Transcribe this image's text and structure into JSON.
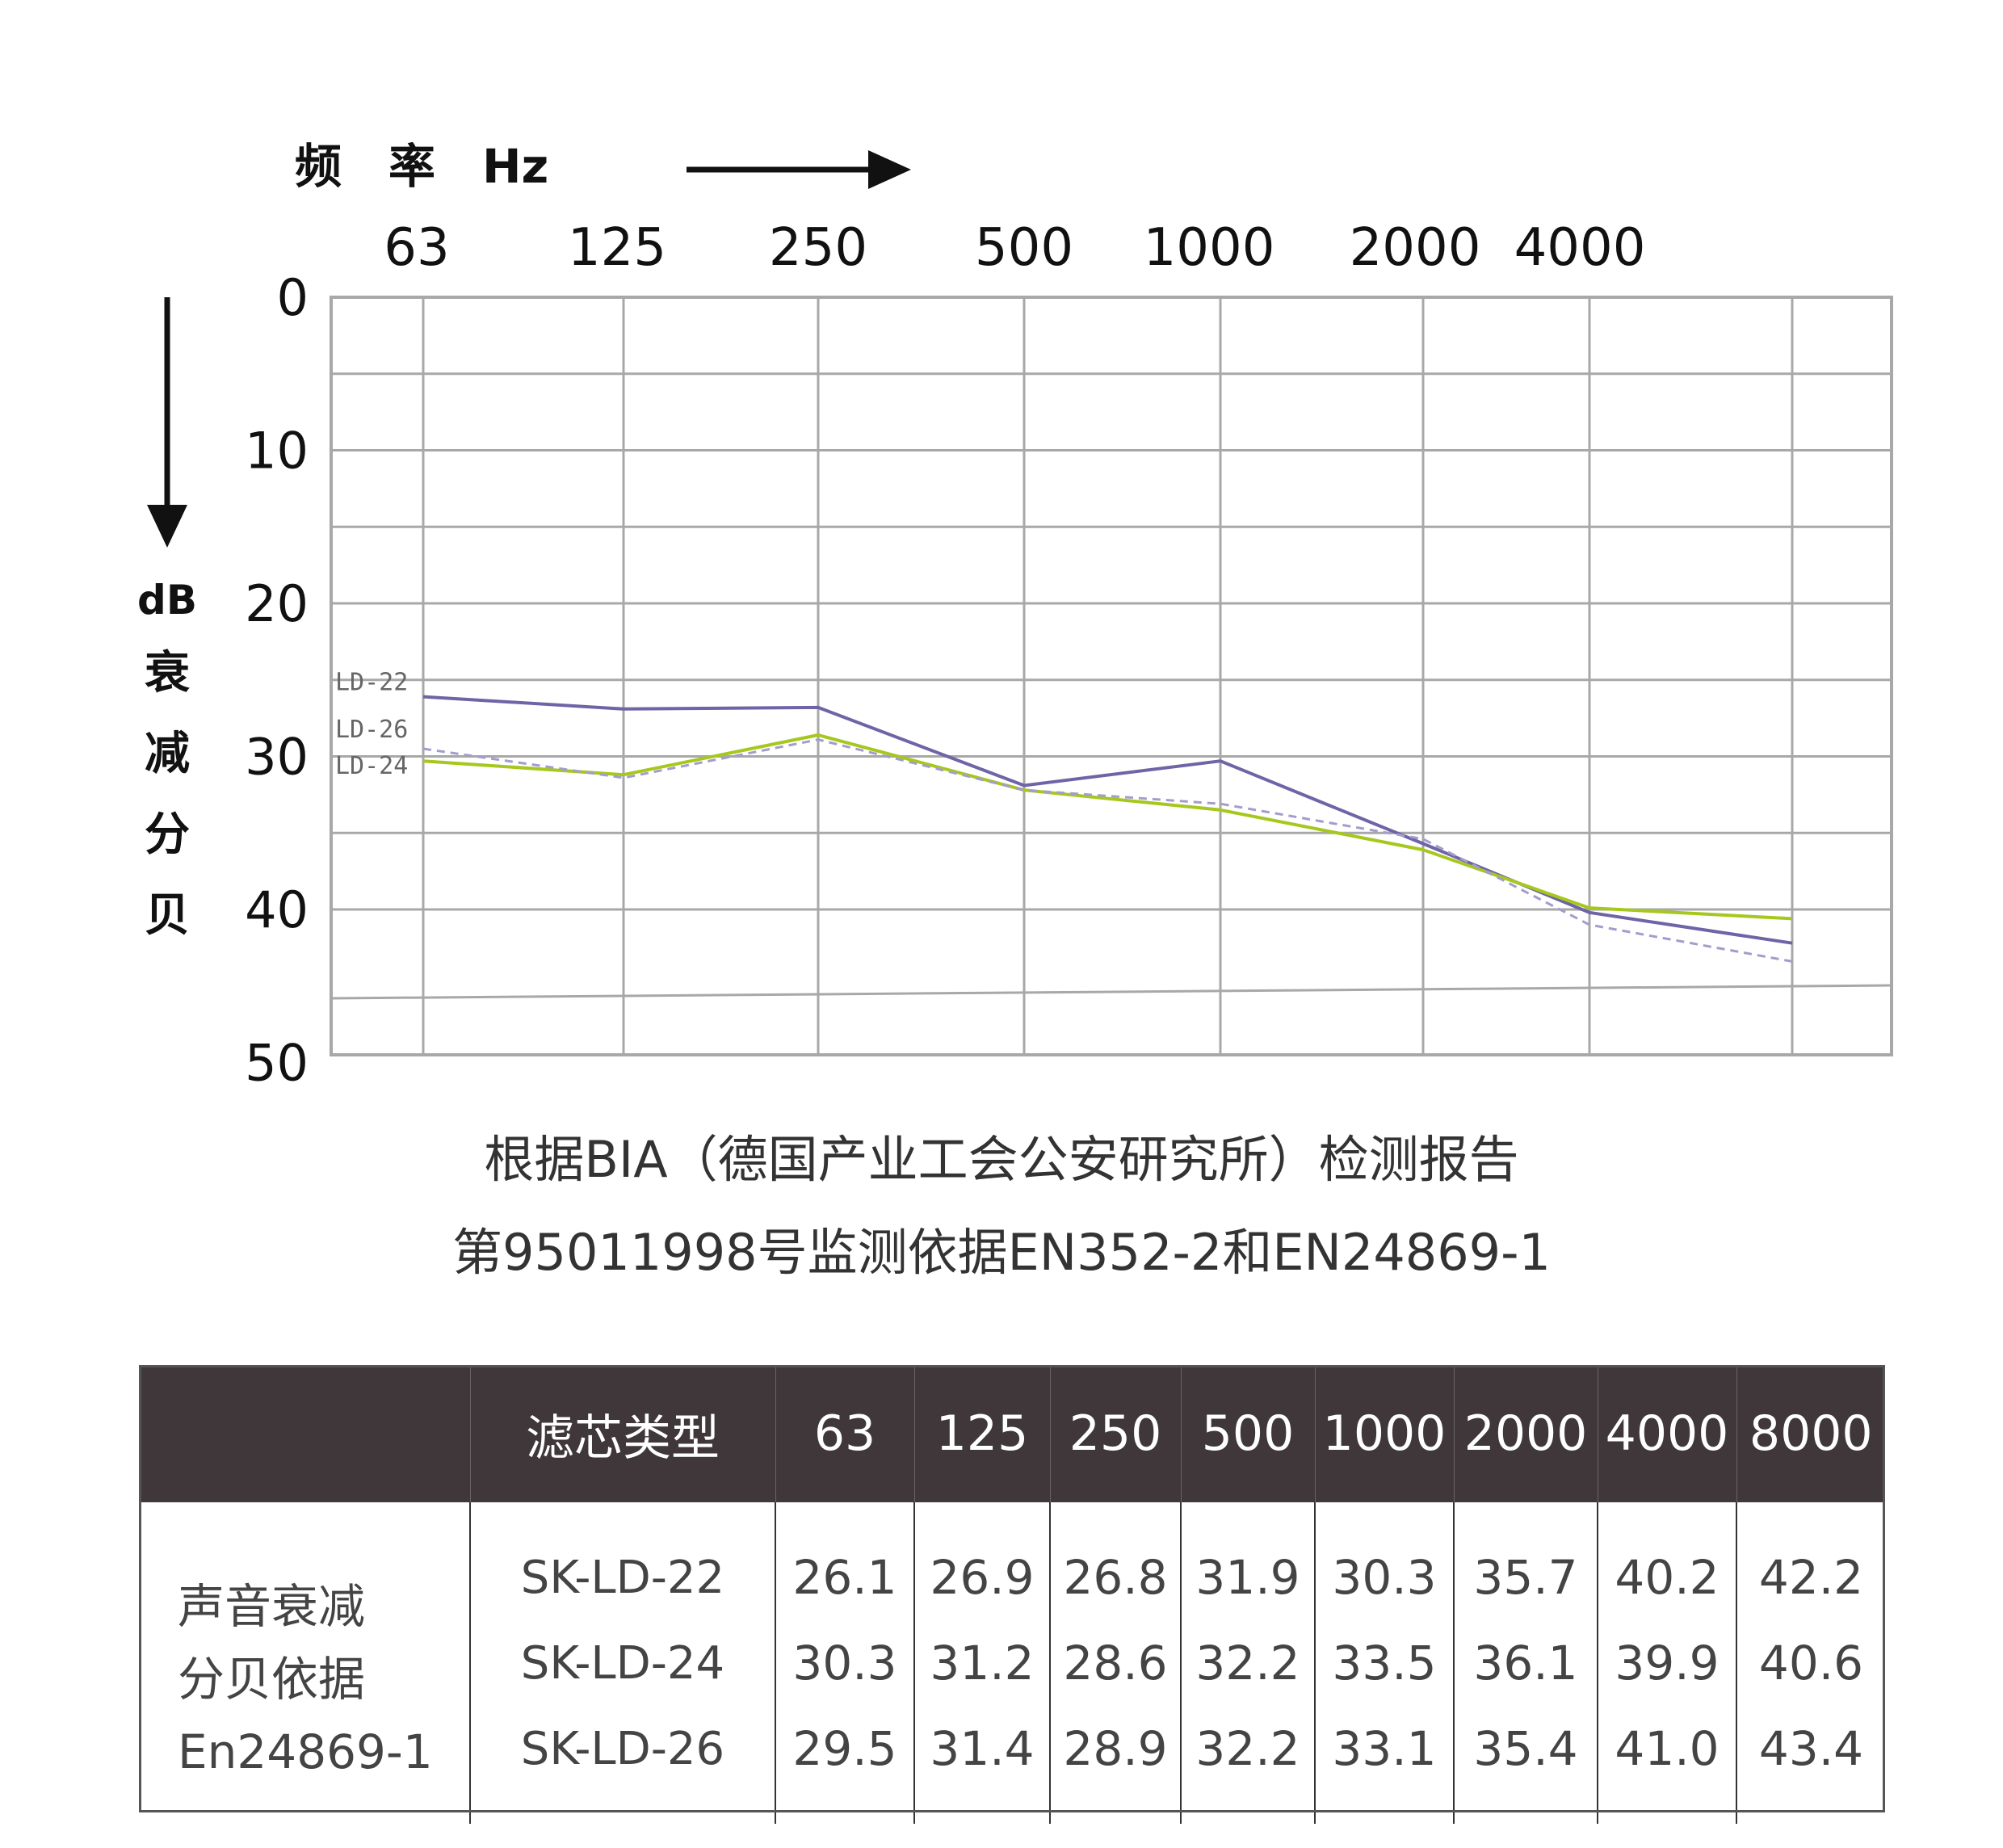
{
  "chart_data": {
    "type": "line",
    "x_axis_title": "频　率　Hz",
    "y_axis_title": [
      "dB",
      "衰",
      "减",
      "分",
      "贝"
    ],
    "x_tick_labels": [
      "63",
      "125",
      "250",
      "500",
      "1000",
      "2000",
      "4000"
    ],
    "x": [
      "63",
      "125",
      "250",
      "500",
      "1000",
      "2000",
      "4000",
      "8000"
    ],
    "y_tick_labels": [
      "0",
      "10",
      "20",
      "30",
      "40",
      "50"
    ],
    "ylim": [
      0,
      50
    ],
    "y_inverted": true,
    "grid": true,
    "series": [
      {
        "name": "LD-22",
        "values": [
          26.1,
          26.9,
          26.8,
          31.9,
          30.3,
          35.7,
          40.2,
          42.2
        ],
        "color": "#6e64a6",
        "style": "solid"
      },
      {
        "name": "LD-24",
        "values": [
          30.3,
          31.2,
          28.6,
          32.2,
          33.5,
          36.1,
          39.9,
          40.6
        ],
        "color": "#a6c81e",
        "style": "solid"
      },
      {
        "name": "LD-26",
        "values": [
          29.5,
          31.4,
          28.9,
          32.2,
          33.1,
          35.4,
          41.0,
          43.4
        ],
        "color": "#a49ccc",
        "style": "dashed"
      }
    ],
    "grid_color": "#a8a8a8"
  },
  "caption": {
    "line1": "根据BIA（德国产业工会公安研究所）检测报告",
    "line2": "第95011998号监测依据EN352-2和EN24869-1"
  },
  "table": {
    "header": [
      "",
      "滤芯类型",
      "63",
      "125",
      "250",
      "500",
      "1000",
      "2000",
      "4000",
      "8000"
    ],
    "row_label": [
      "声音衰减",
      "分贝依据",
      "En24869-1"
    ],
    "rows": [
      {
        "type": "SK-LD-22",
        "values": [
          "26.1",
          "26.9",
          "26.8",
          "31.9",
          "30.3",
          "35.7",
          "40.2",
          "42.2"
        ]
      },
      {
        "type": "SK-LD-24",
        "values": [
          "30.3",
          "31.2",
          "28.6",
          "32.2",
          "33.5",
          "36.1",
          "39.9",
          "40.6"
        ]
      },
      {
        "type": "SK-LD-26",
        "values": [
          "29.5",
          "31.4",
          "28.9",
          "32.2",
          "33.1",
          "35.4",
          "41.0",
          "43.4"
        ]
      }
    ],
    "header_bg": "#3f373a"
  }
}
